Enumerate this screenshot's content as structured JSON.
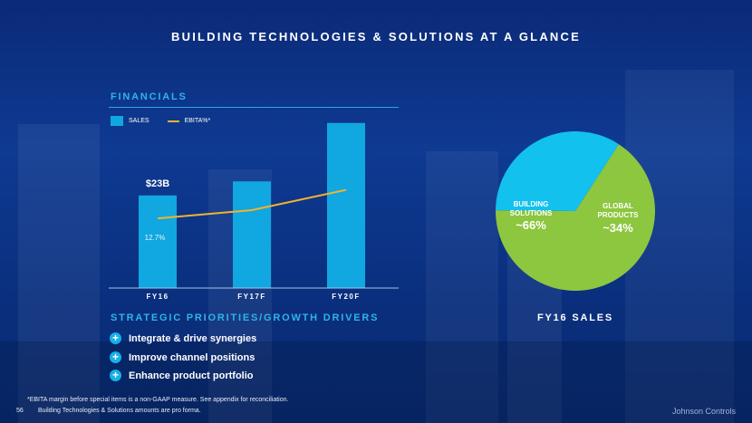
{
  "slide": {
    "title": "BUILDING TECHNOLOGIES & SOLUTIONS AT A GLANCE",
    "page_number": "56",
    "brand": "Johnson Controls"
  },
  "financials": {
    "heading": "FINANCIALS",
    "legend_sales": "SALES",
    "legend_ebita": "EBITA%*",
    "sales_label": "$23B",
    "ebita_label": "12.7%"
  },
  "priorities": {
    "heading": "STRATEGIC PRIORITIES/GROWTH DRIVERS",
    "items": [
      "Integrate & drive synergies",
      "Improve channel positions",
      "Enhance product portfolio"
    ]
  },
  "pie": {
    "caption": "FY16 SALES",
    "slice1_name": "BUILDING SOLUTIONS",
    "slice1_name_line1": "BUILDING",
    "slice1_name_line2": "SOLUTIONS",
    "slice1_value": "~66%",
    "slice2_name_line1": "GLOBAL",
    "slice2_name_line2": "PRODUCTS",
    "slice2_value": "~34%"
  },
  "footnotes": {
    "line1": "*EBITA margin before special items is a non-GAAP measure.  See appendix for reconciliation.",
    "line2": "Building Technologies & Solutions amounts are pro forma."
  },
  "colors": {
    "bar": "#11a7e0",
    "line": "#f4b32b",
    "pie_building": "#8dc63f",
    "pie_global": "#12c1ee",
    "accent": "#2fb3ea"
  },
  "chart_data": [
    {
      "type": "bar",
      "categories": [
        "FY16",
        "FY17F",
        "FY20F"
      ],
      "series": [
        {
          "name": "SALES",
          "values": [
            23,
            26.5,
            41
          ],
          "unit": "$B"
        },
        {
          "name": "EBITA%*",
          "type": "line",
          "values": [
            12.7,
            14.0,
            17.2
          ],
          "unit": "%"
        }
      ],
      "data_labels": [
        "$23B",
        "12.7%"
      ],
      "ylim": [
        0,
        45
      ],
      "grid": false,
      "legend": "top-left"
    },
    {
      "type": "pie",
      "title": "FY16 SALES",
      "labels": [
        "BUILDING SOLUTIONS",
        "GLOBAL PRODUCTS"
      ],
      "values": [
        66,
        34
      ],
      "value_labels": [
        "~66%",
        "~34%"
      ]
    }
  ]
}
